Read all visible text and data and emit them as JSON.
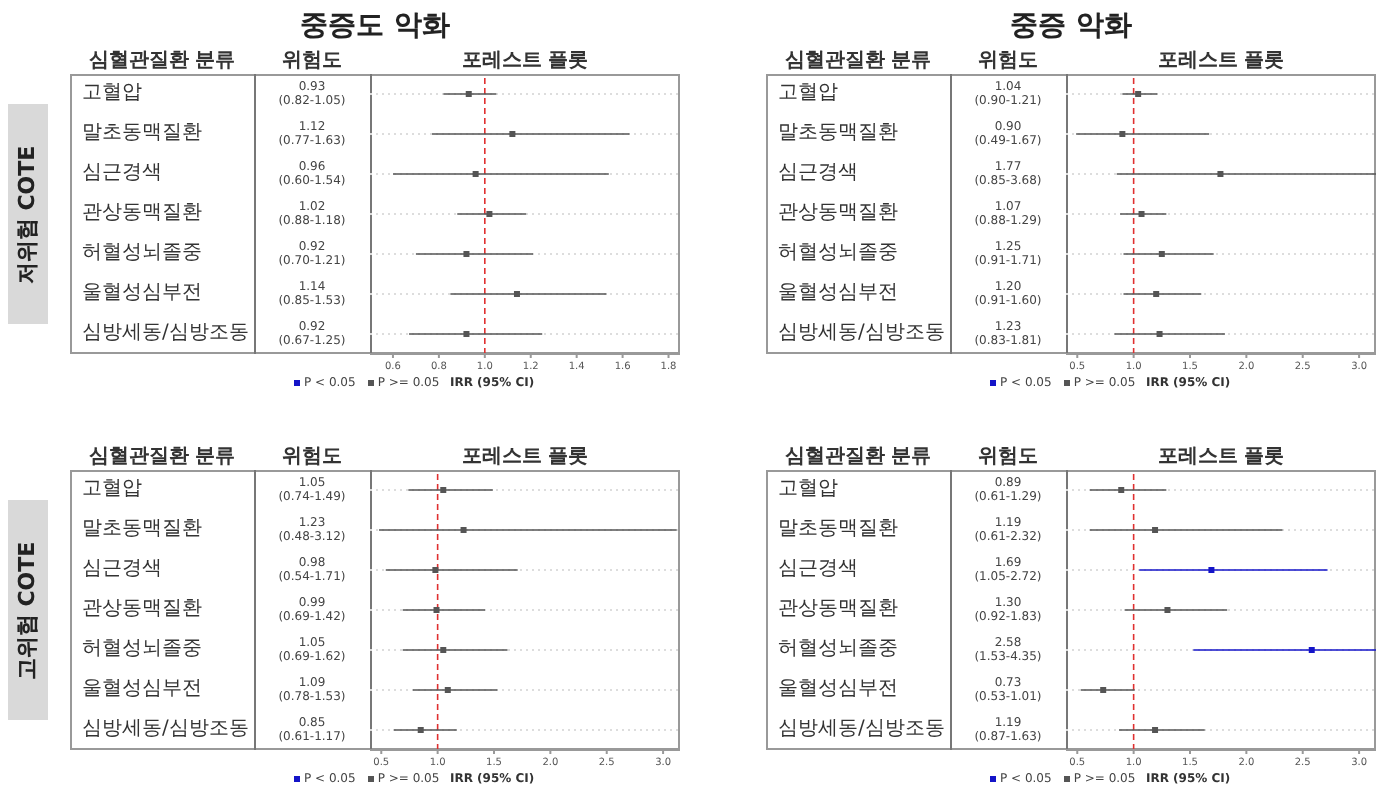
{
  "chart_data": [
    {
      "type": "scatter",
      "title": "중증도 악화",
      "ylabel": "저위험 COTE",
      "xlabel": "IRR (95% CI)",
      "annotations": [
        "심혈관질환 분류",
        "위험도",
        "포레스트 플롯"
      ],
      "categories": [
        "고혈압",
        "말초동맥질환",
        "심근경색",
        "관상동맥질환",
        "허혈성뇌졸중",
        "울혈성심부전",
        "심방세동/심방조동"
      ],
      "value_labels": [
        "0.93 (0.82-1.05)",
        "1.12 (0.77-1.63)",
        "0.96 (0.60-1.54)",
        "1.02 (0.88-1.18)",
        "0.92 (0.70-1.21)",
        "1.14 (0.85-1.53)",
        "0.92 (0.67-1.25)"
      ],
      "series": [
        {
          "name": "P < 0.05",
          "color": "#1414c8",
          "values": [
            null,
            null,
            null,
            null,
            null,
            null,
            null
          ],
          "errors": [
            null,
            null,
            null,
            null,
            null,
            null,
            null
          ]
        },
        {
          "name": "P >= 0.05",
          "color": "#555555",
          "values": [
            0.93,
            1.12,
            0.96,
            1.02,
            0.92,
            1.14,
            0.92
          ],
          "errors": [
            [
              0.82,
              1.05
            ],
            [
              0.77,
              1.63
            ],
            [
              0.6,
              1.54
            ],
            [
              0.88,
              1.18
            ],
            [
              0.7,
              1.21
            ],
            [
              0.85,
              1.53
            ],
            [
              0.67,
              1.25
            ]
          ]
        }
      ],
      "xlim": [
        0.5,
        1.85
      ],
      "xticks": [
        0.6,
        0.8,
        {
          "value": 1,
          "label": "1.0"
        },
        1.2,
        1.4,
        1.6,
        1.8
      ],
      "ref_lines": [
        {
          "axis": "x",
          "value": 1,
          "color": "#e03030",
          "line_style": "dashed"
        }
      ],
      "grid": "y",
      "legend": "bottom",
      "marker": "square",
      "tick_labels": "x",
      "orientation": "horizontal"
    },
    {
      "type": "scatter",
      "title": "중증 악화",
      "xlabel": "IRR (95% CI)",
      "annotations": [
        "심혈관질환 분류",
        "위험도",
        "포레스트 플롯"
      ],
      "categories": [
        "고혈압",
        "말초동맥질환",
        "심근경색",
        "관상동맥질환",
        "허혈성뇌졸중",
        "울혈성심부전",
        "심방세동/심방조동"
      ],
      "value_labels": [
        "1.04 (0.90-1.21)",
        "0.90 (0.49-1.67)",
        "1.77 (0.85-3.68)",
        "1.07 (0.88-1.29)",
        "1.25 (0.91-1.71)",
        "1.20 (0.91-1.60)",
        "1.23 (0.83-1.81)"
      ],
      "series": [
        {
          "name": "P < 0.05",
          "color": "#1414c8",
          "values": [
            null,
            null,
            null,
            null,
            null,
            null,
            null
          ],
          "errors": [
            null,
            null,
            null,
            null,
            null,
            null,
            null
          ]
        },
        {
          "name": "P >= 0.05",
          "color": "#555555",
          "values": [
            1.04,
            0.9,
            1.77,
            1.07,
            1.25,
            1.2,
            1.23
          ],
          "errors": [
            [
              0.9,
              1.21
            ],
            [
              0.49,
              1.67
            ],
            [
              0.85,
              3.68
            ],
            [
              0.88,
              1.29
            ],
            [
              0.91,
              1.71
            ],
            [
              0.91,
              1.6
            ],
            [
              0.83,
              1.81
            ]
          ]
        }
      ],
      "xlim": [
        0.4,
        3.15
      ],
      "xticks": [
        0.5,
        {
          "value": 1,
          "label": "1.0"
        },
        1.5,
        {
          "value": 2,
          "label": "2.0"
        },
        2.5,
        {
          "value": 3,
          "label": "3.0"
        }
      ],
      "ref_lines": [
        {
          "axis": "x",
          "value": 1,
          "color": "#e03030",
          "line_style": "dashed"
        }
      ],
      "grid": "y",
      "legend": "bottom",
      "marker": "square",
      "tick_labels": "x",
      "orientation": "horizontal"
    },
    {
      "type": "scatter",
      "ylabel": "고위험 COTE",
      "xlabel": "IRR (95% CI)",
      "annotations": [
        "심혈관질환 분류",
        "위험도",
        "포레스트 플롯"
      ],
      "categories": [
        "고혈압",
        "말초동맥질환",
        "심근경색",
        "관상동맥질환",
        "허혈성뇌졸중",
        "울혈성심부전",
        "심방세동/심방조동"
      ],
      "value_labels": [
        "1.05 (0.74-1.49)",
        "1.23 (0.48-3.12)",
        "0.98 (0.54-1.71)",
        "0.99 (0.69-1.42)",
        "1.05 (0.69-1.62)",
        "1.09 (0.78-1.53)",
        "0.85 (0.61-1.17)"
      ],
      "series": [
        {
          "name": "P < 0.05",
          "color": "#1414c8",
          "values": [
            null,
            null,
            null,
            null,
            null,
            null,
            null
          ],
          "errors": [
            null,
            null,
            null,
            null,
            null,
            null,
            null
          ]
        },
        {
          "name": "P >= 0.05",
          "color": "#555555",
          "values": [
            1.05,
            1.23,
            0.98,
            0.99,
            1.05,
            1.09,
            0.85
          ],
          "errors": [
            [
              0.74,
              1.49
            ],
            [
              0.48,
              3.12
            ],
            [
              0.54,
              1.71
            ],
            [
              0.69,
              1.42
            ],
            [
              0.69,
              1.62
            ],
            [
              0.78,
              1.53
            ],
            [
              0.61,
              1.17
            ]
          ]
        }
      ],
      "xlim": [
        0.4,
        3.15
      ],
      "xticks": [
        0.5,
        {
          "value": 1,
          "label": "1.0"
        },
        1.5,
        {
          "value": 2,
          "label": "2.0"
        },
        2.5,
        {
          "value": 3,
          "label": "3.0"
        }
      ],
      "ref_lines": [
        {
          "axis": "x",
          "value": 1,
          "color": "#e03030",
          "line_style": "dashed"
        }
      ],
      "grid": "y",
      "legend": "bottom",
      "marker": "square",
      "tick_labels": "x",
      "orientation": "horizontal"
    },
    {
      "type": "scatter",
      "xlabel": "IRR (95% CI)",
      "annotations": [
        "심혈관질환 분류",
        "위험도",
        "포레스트 플롯"
      ],
      "categories": [
        "고혈압",
        "말초동맥질환",
        "심근경색",
        "관상동맥질환",
        "허혈성뇌졸중",
        "울혈성심부전",
        "심방세동/심방조동"
      ],
      "value_labels": [
        "0.89 (0.61-1.29)",
        "1.19 (0.61-2.32)",
        "1.69 (1.05-2.72)",
        "1.30 (0.92-1.83)",
        "2.58 (1.53-4.35)",
        "0.73 (0.53-1.01)",
        "1.19 (0.87-1.63)"
      ],
      "series": [
        {
          "name": "P < 0.05",
          "color": "#1414c8",
          "values": [
            null,
            null,
            1.69,
            null,
            2.58,
            null,
            null
          ],
          "errors": [
            null,
            null,
            [
              1.05,
              2.72
            ],
            null,
            [
              1.53,
              4.35
            ],
            null,
            null
          ]
        },
        {
          "name": "P >= 0.05",
          "color": "#555555",
          "values": [
            0.89,
            1.19,
            null,
            1.3,
            null,
            0.73,
            1.19
          ],
          "errors": [
            [
              0.61,
              1.29
            ],
            [
              0.61,
              2.32
            ],
            null,
            [
              0.92,
              1.83
            ],
            null,
            [
              0.53,
              1.01
            ],
            [
              0.87,
              1.63
            ]
          ]
        }
      ],
      "xlim": [
        0.4,
        3.15
      ],
      "xticks": [
        0.5,
        {
          "value": 1,
          "label": "1.0"
        },
        1.5,
        {
          "value": 2,
          "label": "2.0"
        },
        2.5,
        {
          "value": 3,
          "label": "3.0"
        }
      ],
      "ref_lines": [
        {
          "axis": "x",
          "value": 1,
          "color": "#e03030",
          "line_style": "dashed"
        }
      ],
      "grid": "y",
      "legend": "bottom",
      "marker": "square",
      "tick_labels": "x",
      "orientation": "horizontal"
    }
  ]
}
